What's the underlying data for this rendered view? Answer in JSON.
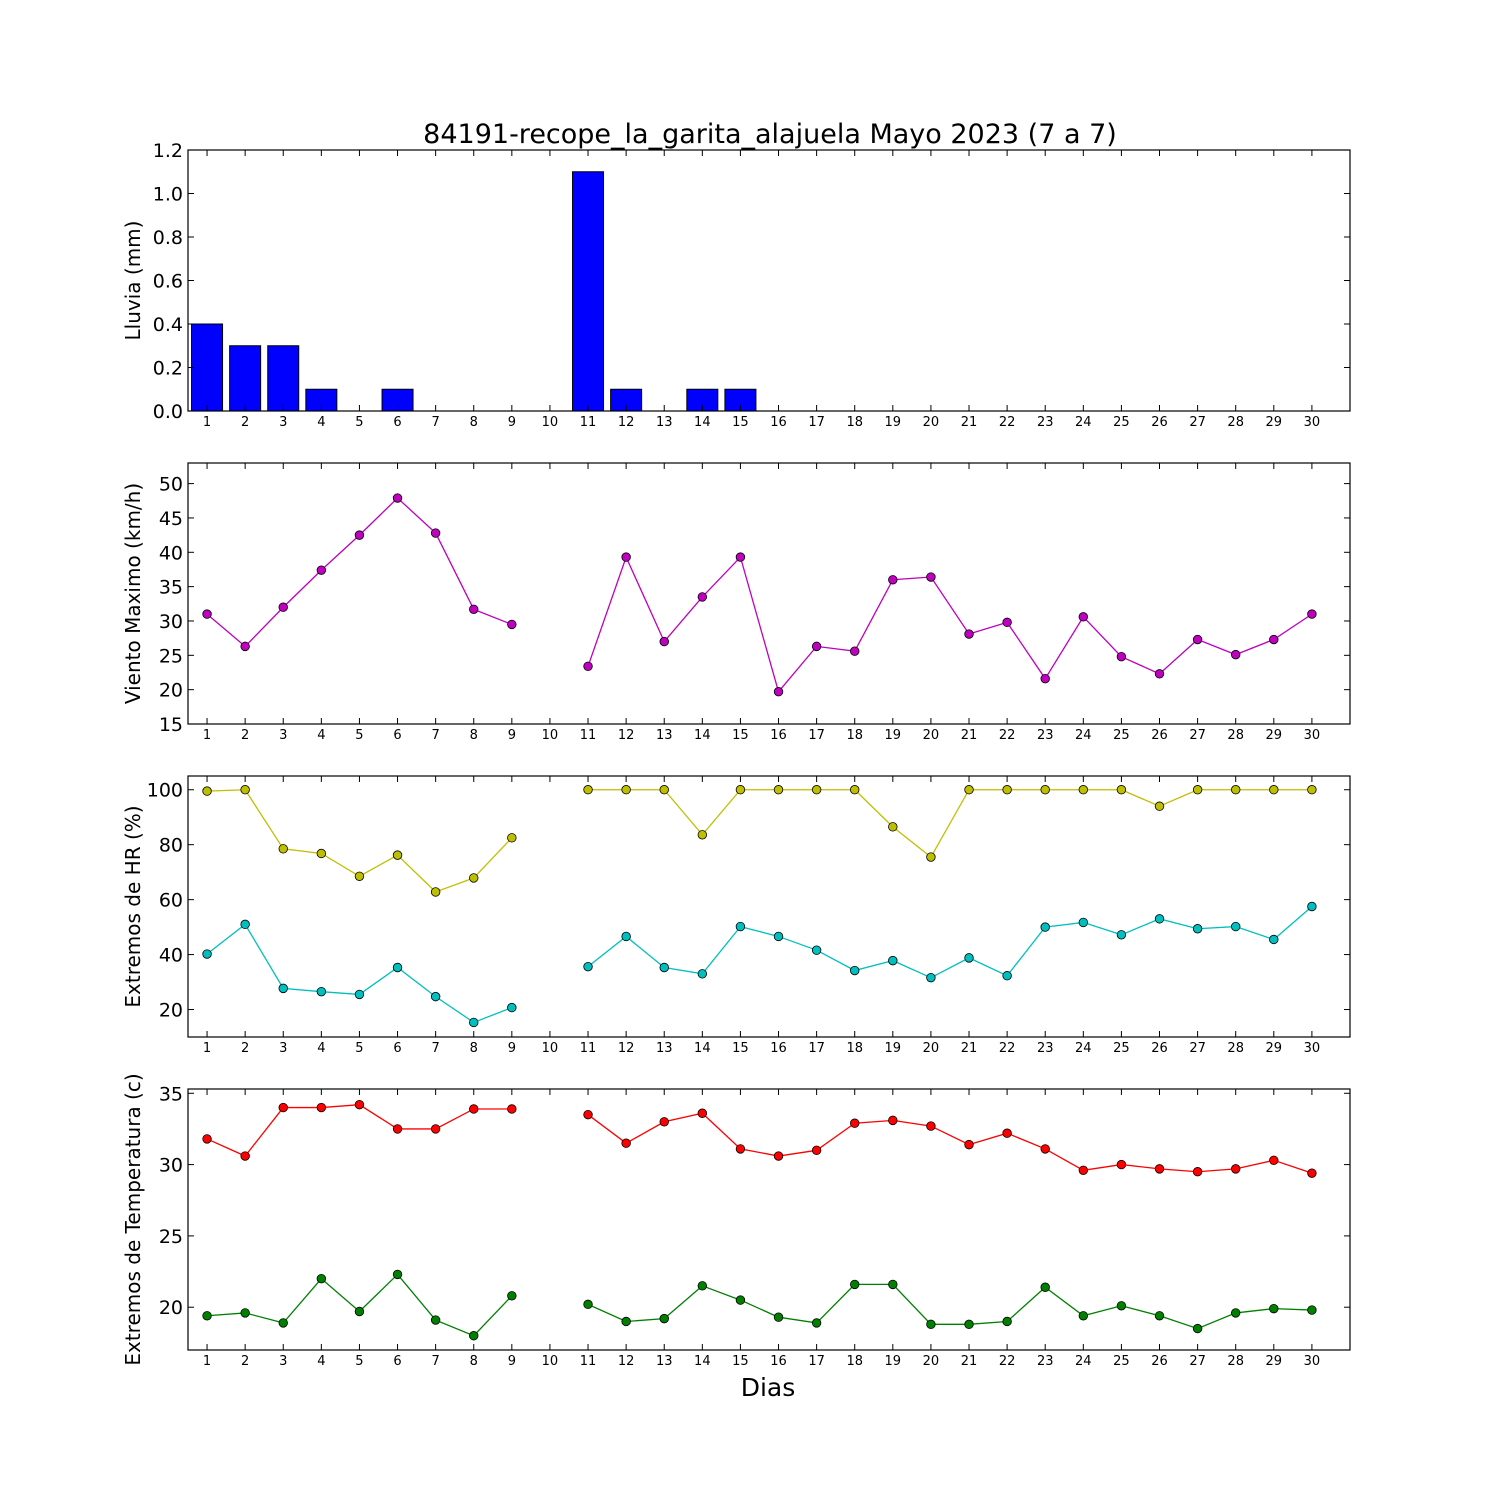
{
  "title": "84191-recope_la_garita_alajuela Mayo 2023  (7 a 7)",
  "xlabel": "Dias",
  "chart_data": [
    {
      "type": "bar",
      "ylabel": "Lluvia (mm)",
      "ylim": [
        0,
        1.2
      ],
      "yticks": [
        0.0,
        0.2,
        0.4,
        0.6,
        0.8,
        1.0,
        1.2
      ],
      "ytick_decimals": 1,
      "x": [
        1,
        2,
        3,
        4,
        5,
        6,
        7,
        8,
        9,
        10,
        11,
        12,
        13,
        14,
        15,
        16,
        17,
        18,
        19,
        20,
        21,
        22,
        23,
        24,
        25,
        26,
        27,
        28,
        29,
        30
      ],
      "series": [
        {
          "color": "#0000ff",
          "values": [
            0.4,
            0.3,
            0.3,
            0.1,
            0.0,
            0.1,
            0.0,
            0.0,
            0.0,
            null,
            1.1,
            0.1,
            0.0,
            0.1,
            0.1,
            0.0,
            0.0,
            0.0,
            0.0,
            0.0,
            0.0,
            0.0,
            0.0,
            0.0,
            0.0,
            0.0,
            0.0,
            0.0,
            0.0,
            0.0
          ]
        }
      ]
    },
    {
      "type": "line",
      "ylabel": "Viento Maximo (km/h)",
      "ylim": [
        15,
        53
      ],
      "yticks": [
        15,
        20,
        25,
        30,
        35,
        40,
        45,
        50
      ],
      "ytick_decimals": 0,
      "x": [
        1,
        2,
        3,
        4,
        5,
        6,
        7,
        8,
        9,
        10,
        11,
        12,
        13,
        14,
        15,
        16,
        17,
        18,
        19,
        20,
        21,
        22,
        23,
        24,
        25,
        26,
        27,
        28,
        29,
        30
      ],
      "series": [
        {
          "color": "#bf00bf",
          "values": [
            31.0,
            26.3,
            32.0,
            37.4,
            42.5,
            47.9,
            42.8,
            31.7,
            29.5,
            null,
            23.4,
            39.3,
            27.0,
            33.5,
            39.3,
            19.7,
            26.3,
            25.6,
            36.0,
            36.4,
            28.1,
            29.8,
            21.6,
            30.6,
            24.8,
            22.3,
            27.3,
            25.1,
            27.3,
            31.0
          ]
        }
      ]
    },
    {
      "type": "line",
      "ylabel": "Extremos de HR (%)",
      "ylim": [
        10,
        105
      ],
      "yticks": [
        20,
        40,
        60,
        80,
        100
      ],
      "ytick_decimals": 0,
      "x": [
        1,
        2,
        3,
        4,
        5,
        6,
        7,
        8,
        9,
        10,
        11,
        12,
        13,
        14,
        15,
        16,
        17,
        18,
        19,
        20,
        21,
        22,
        23,
        24,
        25,
        26,
        27,
        28,
        29,
        30
      ],
      "series": [
        {
          "color": "#bfbf00",
          "values": [
            99.5,
            100,
            78.5,
            76.8,
            68.5,
            76.2,
            62.8,
            67.9,
            82.5,
            null,
            100,
            100,
            100,
            83.6,
            100,
            100,
            100,
            100,
            86.5,
            75.5,
            100,
            100,
            100,
            100,
            100,
            94.0,
            100,
            100,
            100,
            100
          ]
        },
        {
          "color": "#00bfbf",
          "values": [
            40.2,
            51.0,
            27.7,
            26.5,
            25.5,
            35.3,
            24.7,
            15.3,
            20.7,
            null,
            35.6,
            46.6,
            35.3,
            33.0,
            50.2,
            46.6,
            41.6,
            34.2,
            37.8,
            31.6,
            38.8,
            32.3,
            50.0,
            51.7,
            47.2,
            53.0,
            49.4,
            50.2,
            45.5,
            57.5
          ]
        }
      ]
    },
    {
      "type": "line",
      "ylabel": "Extremos de Temperatura (c)",
      "ylim": [
        17,
        35.3
      ],
      "yticks": [
        20,
        25,
        30,
        35
      ],
      "ytick_decimals": 0,
      "x": [
        1,
        2,
        3,
        4,
        5,
        6,
        7,
        8,
        9,
        10,
        11,
        12,
        13,
        14,
        15,
        16,
        17,
        18,
        19,
        20,
        21,
        22,
        23,
        24,
        25,
        26,
        27,
        28,
        29,
        30
      ],
      "series": [
        {
          "color": "#ff0000",
          "values": [
            31.8,
            30.6,
            34.0,
            34.0,
            34.2,
            32.5,
            32.5,
            33.9,
            33.9,
            null,
            33.5,
            31.5,
            33.0,
            33.6,
            31.1,
            30.6,
            31.0,
            32.9,
            33.1,
            32.7,
            31.4,
            32.2,
            31.1,
            29.6,
            30.0,
            29.7,
            29.5,
            29.7,
            30.3,
            29.4
          ]
        },
        {
          "color": "#008000",
          "values": [
            19.4,
            19.6,
            18.9,
            22.0,
            19.7,
            22.3,
            19.1,
            18.0,
            20.8,
            null,
            20.2,
            19.0,
            19.2,
            21.5,
            20.5,
            19.3,
            18.9,
            21.6,
            21.6,
            18.8,
            18.8,
            19.0,
            21.4,
            19.4,
            20.1,
            19.4,
            18.5,
            19.6,
            19.9,
            19.8
          ]
        }
      ]
    }
  ]
}
